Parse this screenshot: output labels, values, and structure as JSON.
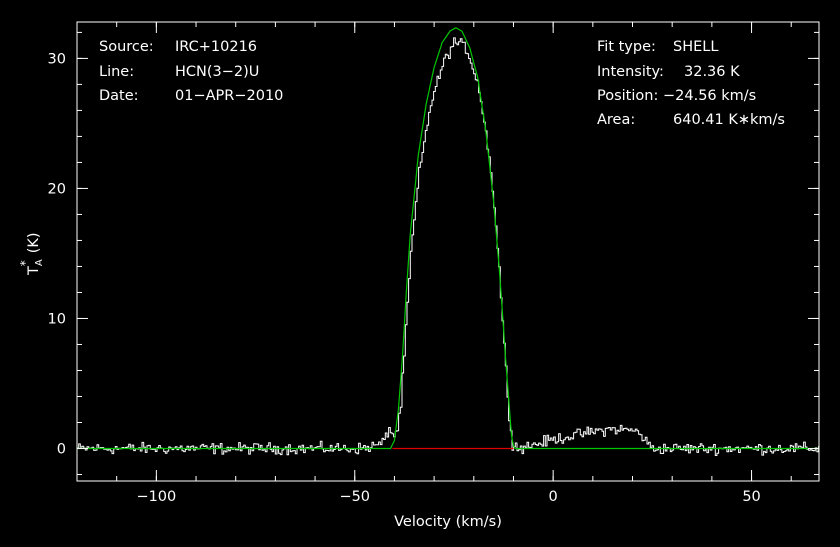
{
  "info_left": {
    "source_label": "Source:",
    "source_value": "IRC+10216",
    "line_label": "Line:",
    "line_value": "HCN(3−2)U",
    "date_label": "Date:",
    "date_value": "01−APR−2010"
  },
  "info_right": {
    "fit_label": "Fit type:",
    "fit_value": "SHELL",
    "intensity_label": "Intensity:",
    "intensity_value": "32.36 K",
    "position_label": "Position:",
    "position_value": "−24.56 km/s",
    "area_label": "Area:",
    "area_value": "640.41 K∗km/s"
  },
  "colors": {
    "background": "#000000",
    "axes": "#ffffff",
    "spectrum": "#ffffff",
    "fit": "#00c800",
    "baseline": "#e00000"
  },
  "chart_data": {
    "type": "line",
    "xlabel": "Velocity (km/s)",
    "ylabel_main": "T",
    "ylabel_sub": "A",
    "ylabel_sup": "*",
    "ylabel_unit": "(K)",
    "xlim": [
      -120,
      67
    ],
    "ylim": [
      -2.5,
      32.8
    ],
    "x_ticks": [
      -100,
      -50,
      0,
      50
    ],
    "x_tick_labels": [
      "−100",
      "−50",
      "0",
      "50"
    ],
    "y_ticks": [
      0,
      10,
      20,
      30
    ],
    "y_tick_labels": [
      "0",
      "10",
      "20",
      "30"
    ],
    "x_minor_step": 10,
    "y_minor_step": 2,
    "series": [
      {
        "role": "spectrum",
        "x": [
          -120,
          -100,
          -80,
          -60,
          -48,
          -43,
          -41.5,
          -40.5,
          -39.5,
          -38.5,
          -37.5,
          -36,
          -34,
          -31,
          -28,
          -25,
          -22,
          -19,
          -16,
          -14,
          -12.5,
          -11.5,
          -10.5,
          -9,
          -5,
          0,
          5,
          10,
          15,
          20,
          22,
          23.5,
          25,
          30,
          40,
          50,
          60,
          67
        ],
        "y": [
          0,
          0,
          0,
          0,
          0,
          0.4,
          1.6,
          1.0,
          1.2,
          3.5,
          8,
          15,
          21,
          26.5,
          29.5,
          31.3,
          30.8,
          28,
          22,
          15,
          8,
          3.5,
          0.5,
          0,
          0.3,
          0.7,
          1.0,
          1.3,
          1.5,
          1.4,
          1.1,
          0.4,
          0,
          0,
          0,
          0,
          0,
          0
        ],
        "noise_rms": 0.3
      },
      {
        "role": "fit",
        "x": [
          -120,
          -41,
          -40,
          -39,
          -38,
          -37,
          -36,
          -34,
          -32,
          -30,
          -28,
          -26,
          -24.56,
          -23,
          -21,
          -19,
          -17,
          -15,
          -13.5,
          -12,
          -11,
          -10.5,
          -10,
          -9.5,
          67
        ],
        "y": [
          0,
          0,
          0.6,
          3,
          7,
          12,
          16.5,
          22.5,
          26.5,
          29.3,
          31.2,
          32.1,
          32.36,
          32.1,
          30.8,
          28.5,
          24.5,
          19,
          13.5,
          7,
          3,
          1,
          0.2,
          0,
          0
        ]
      },
      {
        "role": "baseline",
        "x": [
          -40.5,
          -10
        ],
        "y": [
          0,
          0
        ]
      }
    ]
  }
}
